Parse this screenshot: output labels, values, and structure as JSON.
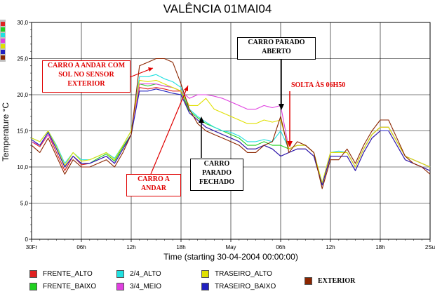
{
  "chart_data": {
    "type": "line",
    "title": "VALÊNCIA 01MAI04",
    "xlabel": "Time (starting 30-04-2004 00:00:00)",
    "ylabel": "Temperature °C",
    "xlim": [
      0,
      48
    ],
    "ylim": [
      0,
      30
    ],
    "x_ticks": [
      {
        "x": 0,
        "label": "30Fr"
      },
      {
        "x": 6,
        "label": "06h"
      },
      {
        "x": 12,
        "label": "12h"
      },
      {
        "x": 18,
        "label": "18h"
      },
      {
        "x": 24,
        "label": "May"
      },
      {
        "x": 30,
        "label": "06h"
      },
      {
        "x": 36,
        "label": "12h"
      },
      {
        "x": 42,
        "label": "18h"
      },
      {
        "x": 48,
        "label": "2Su"
      }
    ],
    "y_ticks": [
      "0",
      "5,0",
      "10,0",
      "15,0",
      "20,0",
      "25,0",
      "30,0"
    ],
    "grid": true,
    "x_hours": [
      0,
      1,
      2,
      3,
      4,
      5,
      6,
      7,
      8,
      9,
      10,
      11,
      12,
      13,
      14,
      15,
      16,
      17,
      18,
      19,
      20,
      21,
      22,
      23,
      24,
      25,
      26,
      27,
      28,
      29,
      30,
      31,
      32,
      33,
      34,
      35,
      36,
      37,
      38,
      39,
      40,
      41,
      42,
      43,
      44,
      45,
      46,
      47,
      48
    ],
    "series": [
      {
        "name": "FRENTE_ALTO",
        "color": "#e02020",
        "values": [
          13.5,
          12.8,
          14.5,
          12,
          9.5,
          11.5,
          10.3,
          10.5,
          11,
          11.5,
          10.5,
          12.5,
          14.5,
          21,
          20.8,
          21,
          20.8,
          20.5,
          20.5,
          17.5,
          16.5,
          15.5,
          15,
          14.5,
          14,
          13.5,
          12.5,
          12.5,
          13,
          12.5,
          11.5,
          12,
          12.5,
          12.5,
          11.5,
          7.5,
          11.5,
          11.5,
          11.5,
          9.5,
          12,
          14,
          15,
          15,
          13,
          11,
          10.5,
          10,
          9.5
        ]
      },
      {
        "name": "FRENTE_BAIXO",
        "color": "#20d020",
        "values": [
          13.5,
          13,
          14.8,
          12.5,
          10,
          11.5,
          10.5,
          10.5,
          11.2,
          11.8,
          10.8,
          12.8,
          14.5,
          21.5,
          21.2,
          21.5,
          21.2,
          21,
          20.5,
          17.8,
          16.8,
          16,
          15.5,
          15,
          14.5,
          14,
          13,
          13,
          13.5,
          13,
          13,
          12.5,
          13,
          13,
          12,
          7.5,
          12,
          12,
          12,
          10,
          12.5,
          14.5,
          15.5,
          15.5,
          13.5,
          11.5,
          11,
          10.5,
          10
        ]
      },
      {
        "name": "2/4_ALTO",
        "color": "#20e0e0",
        "values": [
          14,
          13.5,
          15,
          13,
          10.5,
          12,
          11,
          11,
          11.5,
          12,
          11.2,
          13,
          15,
          22.5,
          22.5,
          22.8,
          22.2,
          21.8,
          21,
          18,
          17,
          16.2,
          15.5,
          15,
          14.8,
          14.3,
          13.5,
          13.5,
          13.8,
          13.5,
          15,
          12.5,
          13,
          13,
          12,
          7.8,
          12,
          12.2,
          12,
          10,
          12.5,
          14.5,
          15.5,
          15.5,
          13.5,
          11.5,
          11,
          10.5,
          10
        ]
      },
      {
        "name": "3/4_MEIO",
        "color": "#e040e0",
        "values": [
          13.5,
          13,
          14.5,
          12.5,
          10,
          11.5,
          10.5,
          10.5,
          11,
          11.5,
          10.5,
          12.5,
          14.5,
          21.5,
          21.5,
          21.5,
          21.2,
          21,
          20.5,
          19.5,
          20,
          20,
          19.8,
          19.5,
          19,
          18.5,
          18,
          18,
          18.5,
          18.2,
          18.5,
          12.5,
          13,
          13,
          12,
          7.5,
          12,
          12,
          12,
          10,
          12.5,
          14.5,
          15.5,
          15.5,
          13.5,
          11.5,
          11,
          10.5,
          10
        ]
      },
      {
        "name": "TRASEIRO_ALTO",
        "color": "#e0e000",
        "values": [
          14,
          13.5,
          15,
          12.8,
          10.2,
          12,
          10.8,
          11,
          11.5,
          12,
          11,
          13,
          15,
          22,
          21.8,
          22,
          21.5,
          21,
          20.5,
          18.5,
          18.5,
          19.5,
          18,
          17.5,
          17,
          16.5,
          16,
          16,
          16.5,
          16.2,
          16.5,
          12.5,
          13,
          13,
          12,
          7.8,
          12,
          12,
          12,
          10,
          12.5,
          14.5,
          15.5,
          15.5,
          13.5,
          11.5,
          11,
          10.5,
          10
        ]
      },
      {
        "name": "TRASEIRO_BAIXO",
        "color": "#2020c0",
        "values": [
          13.8,
          13,
          14.8,
          12.5,
          10,
          11.5,
          10.5,
          10.5,
          11,
          11.5,
          10.5,
          12.5,
          14.5,
          20.5,
          20.5,
          20.8,
          20.5,
          20.2,
          20,
          17.5,
          16.5,
          15.5,
          15,
          14.5,
          14,
          13.5,
          12.5,
          12.5,
          13,
          12.5,
          11.5,
          12,
          12.5,
          12.5,
          11.5,
          7.5,
          11.5,
          11.5,
          11.5,
          9.5,
          12,
          14,
          15,
          15,
          13,
          11,
          10.5,
          10,
          9.5
        ]
      },
      {
        "name": "EXTERIOR",
        "color": "#8b2500",
        "values": [
          13,
          12,
          14,
          11.5,
          9,
          11,
          10,
          10,
          10.5,
          11,
          10,
          12,
          14.5,
          24,
          24.5,
          25,
          25,
          24.5,
          21.5,
          18,
          16,
          15,
          14.5,
          14,
          13.5,
          13,
          12,
          12,
          13,
          13.5,
          17,
          12,
          13.5,
          13,
          12,
          7,
          11,
          11,
          12.5,
          10.5,
          13,
          15,
          16.5,
          16.5,
          14,
          11.5,
          10.5,
          10,
          9
        ]
      }
    ]
  },
  "legend": [
    {
      "label": "FRENTE_ALTO",
      "color": "#e02020"
    },
    {
      "label": "FRENTE_BAIXO",
      "color": "#20d020"
    },
    {
      "label": "2/4_ALTO",
      "color": "#20e0e0"
    },
    {
      "label": "3/4_MEIO",
      "color": "#e040e0"
    },
    {
      "label": "TRASEIRO_ALTO",
      "color": "#e0e000"
    },
    {
      "label": "TRASEIRO_BAIXO",
      "color": "#2020c0"
    },
    {
      "label": "EXTERIOR",
      "color": "#8b2500"
    }
  ],
  "annotations": {
    "carro_andar_sol": "CARRO A ANDAR COM SOL NO SENSOR EXTERIOR",
    "carro_andar": "CARRO A ANDAR",
    "carro_parado_fechado": "CARRO PARADO FECHADO",
    "carro_parado_aberto": "CARRO PARADO ABERTO",
    "solta": "SOLTA ÀS 06H50"
  }
}
